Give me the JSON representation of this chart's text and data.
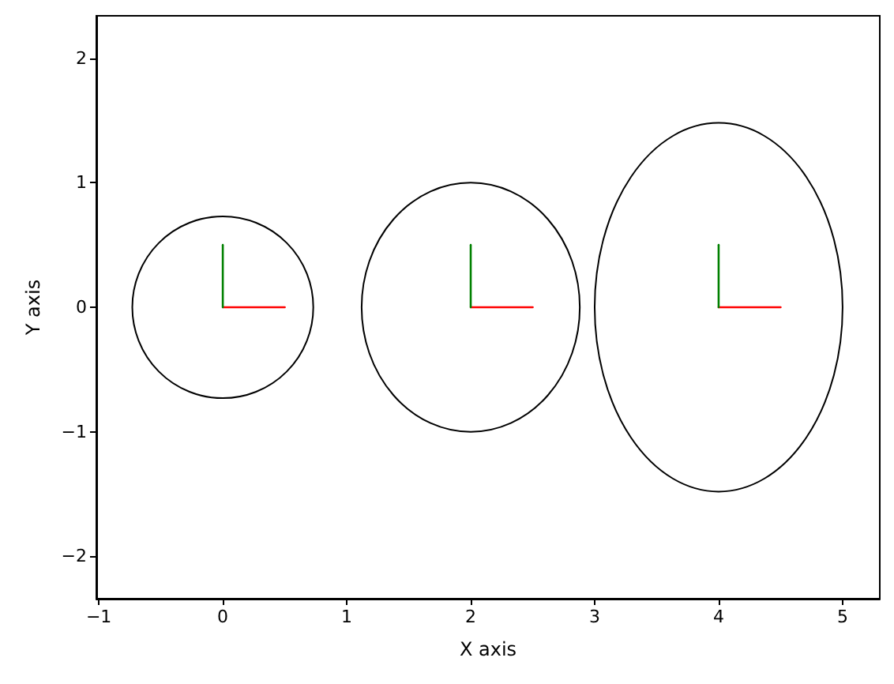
{
  "chart_data": {
    "type": "line",
    "xlabel": "X axis",
    "ylabel": "Y axis",
    "xlim": [
      -1.02,
      5.3
    ],
    "ylim": [
      -2.34,
      2.34
    ],
    "xticks": [
      -1,
      0,
      1,
      2,
      3,
      4,
      5
    ],
    "yticks": [
      -2,
      -1,
      0,
      1,
      2
    ],
    "grid": false,
    "marker": "none",
    "line_style": "solid",
    "series": [
      {
        "color": "#ff0000",
        "x": [
          0,
          0.5
        ],
        "values": [
          0,
          0
        ]
      },
      {
        "color": "#008000",
        "x": [
          0,
          0
        ],
        "values": [
          0,
          0.5
        ]
      },
      {
        "color": "#ff0000",
        "x": [
          2,
          2.5
        ],
        "values": [
          0,
          0
        ]
      },
      {
        "color": "#008000",
        "x": [
          2,
          2
        ],
        "values": [
          0,
          0.5
        ]
      },
      {
        "color": "#ff0000",
        "x": [
          4,
          4.5
        ],
        "values": [
          0,
          0
        ]
      },
      {
        "color": "#008000",
        "x": [
          4,
          4
        ],
        "values": [
          0,
          0.5
        ]
      }
    ]
  }
}
